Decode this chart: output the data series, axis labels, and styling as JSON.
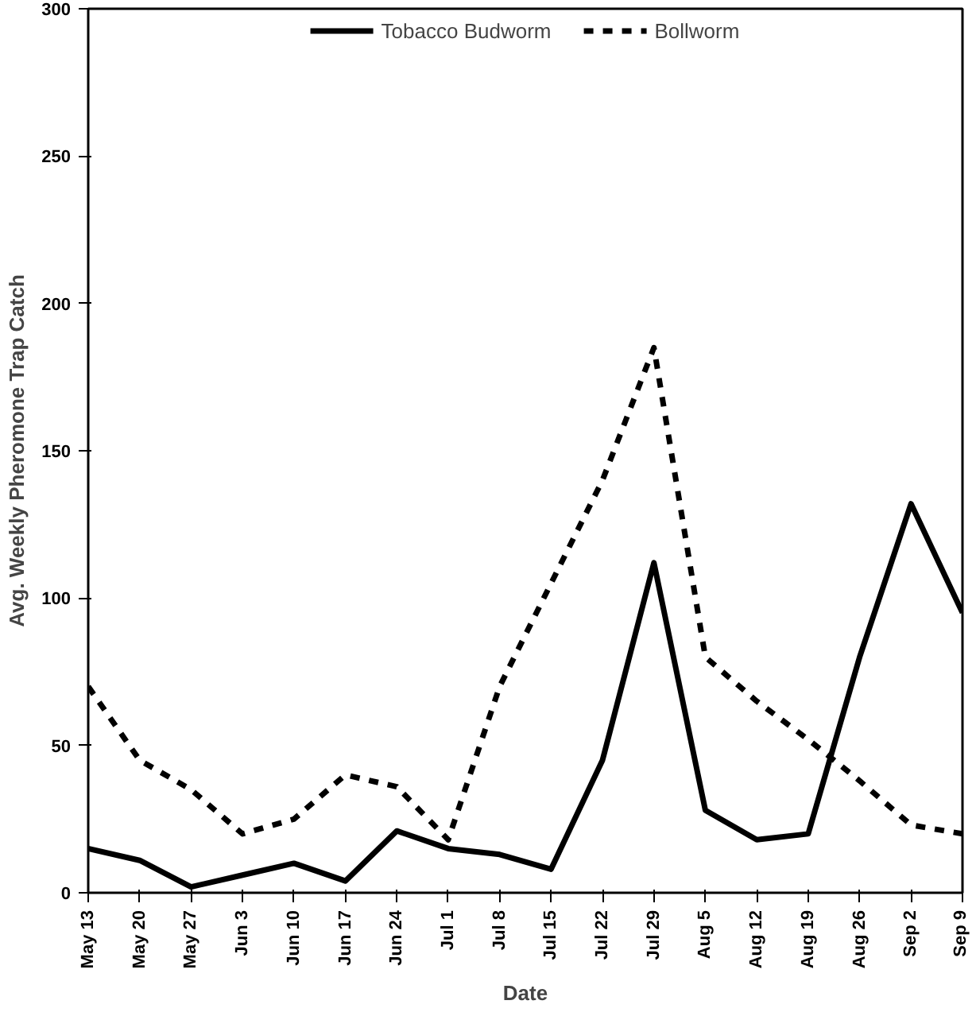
{
  "chart_data": {
    "type": "line",
    "xlabel": "Date",
    "ylabel": "Avg. Weekly Pheromone Trap Catch",
    "categories": [
      "May 13",
      "May 20",
      "May 27",
      "Jun 3",
      "Jun 10",
      "Jun 17",
      "Jun 24",
      "Jul 1",
      "Jul 8",
      "Jul 15",
      "Jul 22",
      "Jul 29",
      "Aug 5",
      "Aug 12",
      "Aug 19",
      "Aug 26",
      "Sep 2",
      "Sep 9"
    ],
    "series": [
      {
        "name": "Tobacco Budworm",
        "color": "#000000",
        "line_style": "solid",
        "values": [
          15,
          11,
          2,
          6,
          10,
          4,
          21,
          15,
          13,
          8,
          45,
          112,
          28,
          18,
          20,
          80,
          132,
          95
        ]
      },
      {
        "name": "Bollworm",
        "color": "#000000",
        "line_style": "dashed",
        "values": [
          70,
          45,
          35,
          20,
          25,
          40,
          36,
          18,
          70,
          105,
          140,
          185,
          80,
          65,
          52,
          38,
          23,
          20
        ]
      }
    ],
    "ylim": [
      0,
      300
    ],
    "yticks": [
      0,
      50,
      100,
      150,
      200,
      250,
      300
    ],
    "grid": false,
    "legend": "top"
  }
}
